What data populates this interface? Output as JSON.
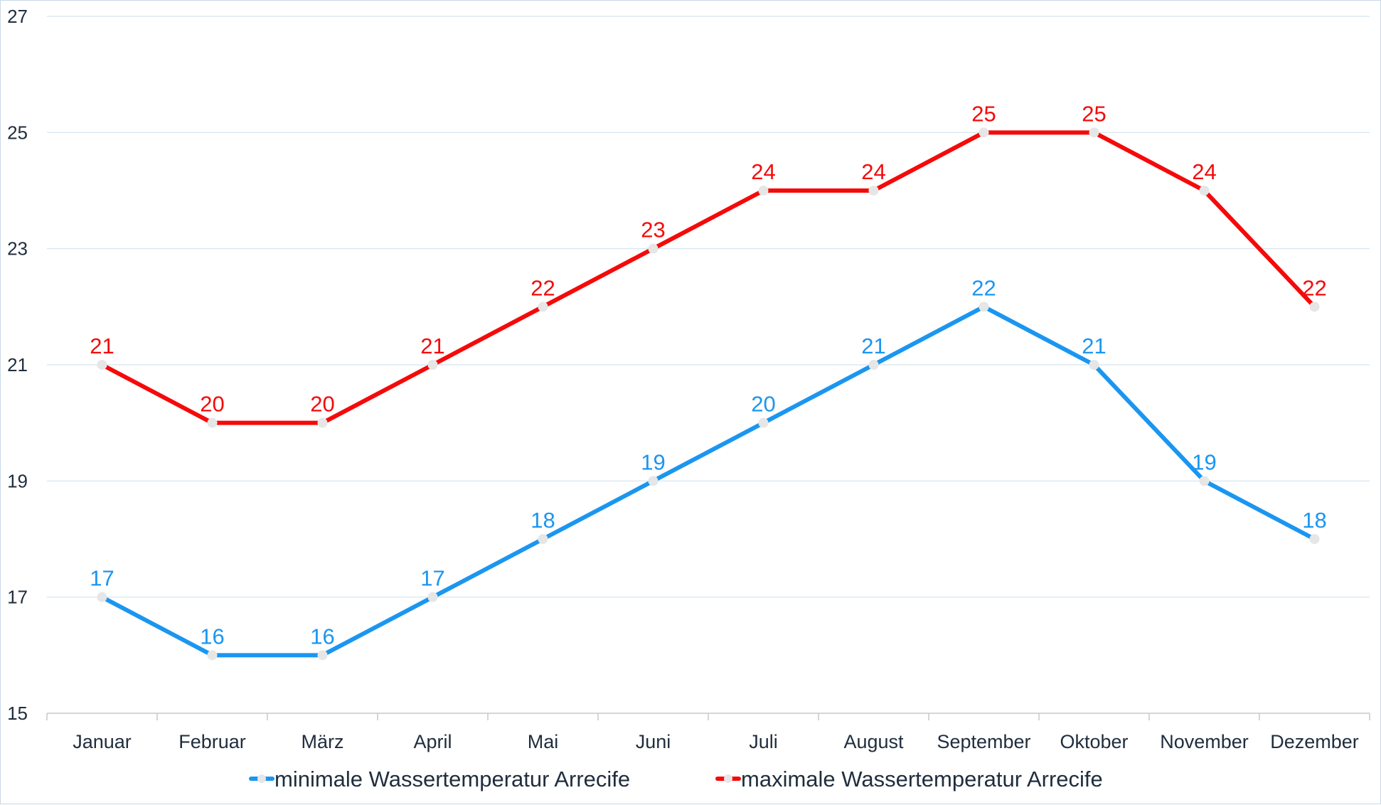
{
  "chart_data": {
    "type": "line",
    "categories": [
      "Januar",
      "Februar",
      "März",
      "April",
      "Mai",
      "Juni",
      "Juli",
      "August",
      "September",
      "Oktober",
      "November",
      "Dezember"
    ],
    "series": [
      {
        "name": "minimale Wassertemperatur Arrecife",
        "color": "#1b96f0",
        "values": [
          17,
          16,
          16,
          17,
          18,
          19,
          20,
          21,
          22,
          21,
          19,
          18
        ]
      },
      {
        "name": "maximale Wassertemperatur Arrecife",
        "color": "#f50a0a",
        "values": [
          21,
          20,
          20,
          21,
          22,
          23,
          24,
          24,
          25,
          25,
          24,
          22
        ]
      }
    ],
    "ylim": [
      15,
      27
    ],
    "yticks": [
      15,
      17,
      19,
      21,
      23,
      25,
      27
    ],
    "grid": true,
    "legend": "bottom",
    "marker_color": "#e6e6e6",
    "title": "",
    "xlabel": "",
    "ylabel": ""
  }
}
